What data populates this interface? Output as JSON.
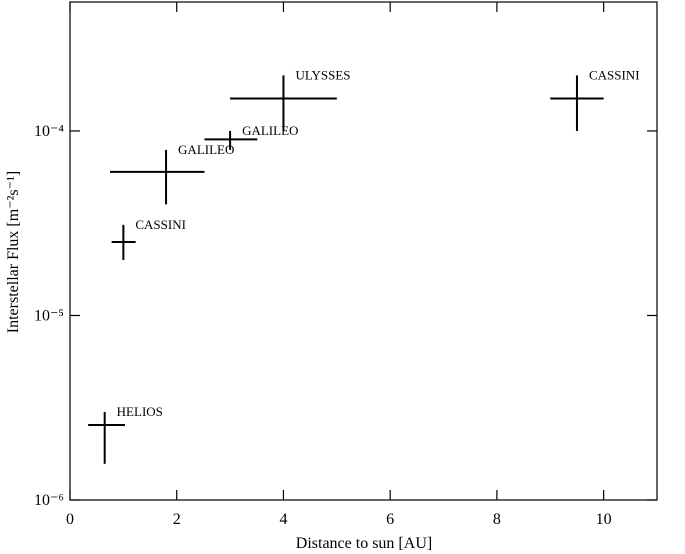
{
  "chart_data": {
    "type": "errorbar",
    "x_label": "Distance to sun [AU]",
    "y_label": "Interstellar Flux [m⁻²s⁻¹]",
    "log_y": true,
    "color": "#000000",
    "xlim": [
      0,
      11
    ],
    "xticks": [
      0,
      2,
      4,
      6,
      8,
      10
    ],
    "ylim": [
      1e-06,
      0.0005
    ],
    "yticks": [
      {
        "value": 1e-06,
        "label": "10⁻⁶"
      },
      {
        "value": 1e-05,
        "label": "10⁻⁵"
      },
      {
        "value": 0.0001,
        "label": "10⁻⁴"
      }
    ],
    "labels": [
      "HELIOS",
      "CASSINI",
      "GALILEO",
      "GALILEO",
      "ULYSSES",
      "CASSINI"
    ],
    "x": [
      0.65,
      1.0,
      1.8,
      3.0,
      4.0,
      9.5
    ],
    "x_lo": [
      0.34,
      0.78,
      0.75,
      2.52,
      3.0,
      9.0
    ],
    "x_hi": [
      1.03,
      1.23,
      2.52,
      3.51,
      5.0,
      10.0
    ],
    "y": [
      2.55e-06,
      2.5e-05,
      6e-05,
      9e-05,
      0.00015,
      0.00015
    ],
    "y_lo": [
      1.57e-06,
      2e-05,
      4e-05,
      7.9e-05,
      0.0001,
      0.0001
    ],
    "y_hi": [
      3e-06,
      3.1e-05,
      7.9e-05,
      0.0001,
      0.0002,
      0.0002
    ]
  }
}
